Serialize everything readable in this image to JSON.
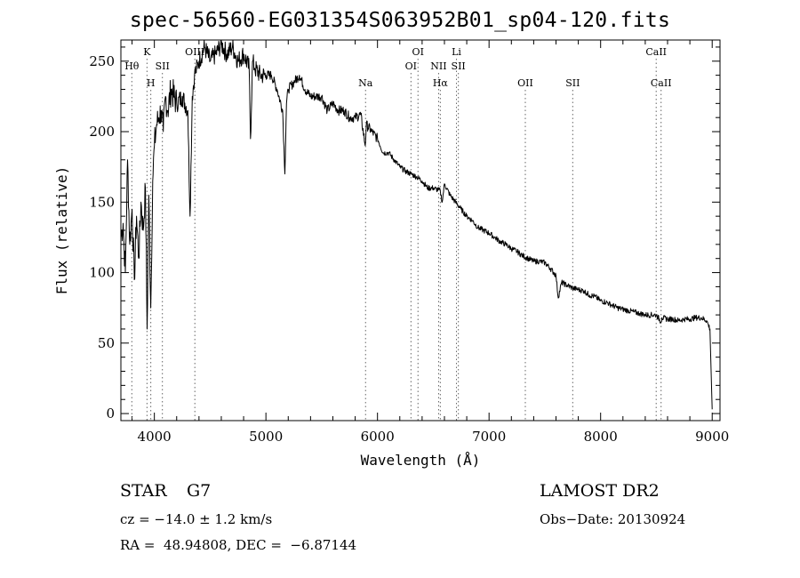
{
  "chart_data": {
    "type": "line",
    "title": "spec-56560-EG031354S063952B01_sp04-120.fits",
    "xlabel": "Wavelength (Å)",
    "ylabel": "Flux (relative)",
    "xlim": [
      3700,
      9070
    ],
    "ylim": [
      -5,
      265
    ],
    "x_ticks": [
      4000,
      5000,
      6000,
      7000,
      8000,
      9000
    ],
    "y_ticks": [
      0,
      50,
      100,
      150,
      200,
      250
    ],
    "grid": false,
    "series": [
      {
        "x": [
          3700,
          3720,
          3740,
          3760,
          3780,
          3800,
          3820,
          3840,
          3860,
          3880,
          3900,
          3920,
          3935,
          3950,
          3968,
          3985,
          4000,
          4020,
          4040,
          4060,
          4080,
          4100,
          4120,
          4150,
          4200,
          4250,
          4300,
          4320,
          4340,
          4360,
          4400,
          4450,
          4500,
          4550,
          4600,
          4650,
          4700,
          4750,
          4800,
          4850,
          4862,
          4880,
          4900,
          4950,
          5000,
          5050,
          5100,
          5150,
          5170,
          5184,
          5200,
          5250,
          5300,
          5350,
          5400,
          5450,
          5500,
          5550,
          5600,
          5650,
          5700,
          5750,
          5800,
          5850,
          5890,
          5900,
          5950,
          6000,
          6050,
          6100,
          6150,
          6200,
          6250,
          6300,
          6350,
          6400,
          6450,
          6500,
          6563,
          6580,
          6600,
          6650,
          6700,
          6750,
          6800,
          6850,
          6900,
          6950,
          7000,
          7050,
          7100,
          7150,
          7200,
          7250,
          7300,
          7350,
          7400,
          7450,
          7500,
          7550,
          7600,
          7620,
          7650,
          7700,
          7750,
          7800,
          7850,
          7900,
          7950,
          8000,
          8050,
          8100,
          8150,
          8200,
          8250,
          8300,
          8350,
          8400,
          8450,
          8500,
          8542,
          8550,
          8600,
          8650,
          8700,
          8750,
          8800,
          8850,
          8900,
          8950,
          8980,
          9000
        ],
        "y": [
          125,
          135,
          100,
          180,
          120,
          145,
          95,
          140,
          110,
          150,
          130,
          160,
          60,
          155,
          75,
          165,
          190,
          205,
          210,
          215,
          200,
          225,
          215,
          230,
          220,
          225,
          215,
          140,
          225,
          240,
          250,
          260,
          250,
          255,
          262,
          255,
          260,
          250,
          255,
          245,
          195,
          250,
          245,
          240,
          240,
          240,
          230,
          215,
          170,
          220,
          230,
          235,
          240,
          230,
          225,
          225,
          225,
          215,
          220,
          215,
          215,
          210,
          210,
          212,
          190,
          205,
          200,
          195,
          185,
          185,
          180,
          175,
          172,
          170,
          168,
          165,
          160,
          160,
          158,
          150,
          163,
          155,
          150,
          145,
          140,
          137,
          132,
          130,
          128,
          125,
          122,
          120,
          117,
          115,
          112,
          110,
          108,
          108,
          107,
          103,
          98,
          82,
          93,
          91,
          89,
          88,
          87,
          84,
          83,
          80,
          79,
          77,
          75,
          74,
          73,
          72,
          71,
          70,
          70,
          70,
          65,
          68,
          67,
          67,
          66,
          67,
          67,
          68,
          68,
          66,
          60,
          3
        ]
      }
    ],
    "line_markers": [
      {
        "label": "Hθ",
        "x": 3798,
        "row": 1
      },
      {
        "label": "K",
        "x": 3934,
        "row": 0
      },
      {
        "label": "H",
        "x": 3968,
        "row": 2
      },
      {
        "label": "SII",
        "x": 4072,
        "row": 1
      },
      {
        "label": "OIII",
        "x": 4363,
        "row": 0
      },
      {
        "label": "Na",
        "x": 5893,
        "row": 2
      },
      {
        "label": "OI",
        "x": 6300,
        "row": 1
      },
      {
        "label": "OI",
        "x": 6363,
        "row": 0
      },
      {
        "label": "NII",
        "x": 6548,
        "row": 1
      },
      {
        "label": "Hα",
        "x": 6563,
        "row": 2
      },
      {
        "label": "Li",
        "x": 6708,
        "row": 0
      },
      {
        "label": "SII",
        "x": 6725,
        "row": 1
      },
      {
        "label": "OII",
        "x": 7325,
        "row": 2
      },
      {
        "label": "SII",
        "x": 7750,
        "row": 2
      },
      {
        "label": "CaII",
        "x": 8498,
        "row": 0
      },
      {
        "label": "CaII",
        "x": 8542,
        "row": 2
      }
    ]
  },
  "info": {
    "object_class": "STAR",
    "subclass": "G7",
    "survey": "LAMOST DR2",
    "cz": "cz = −14.0 ± 1.2 km/s",
    "obs_date": "Obs−Date: 20130924",
    "coords": "RA =  48.94808, DEC =  −6.87144"
  }
}
